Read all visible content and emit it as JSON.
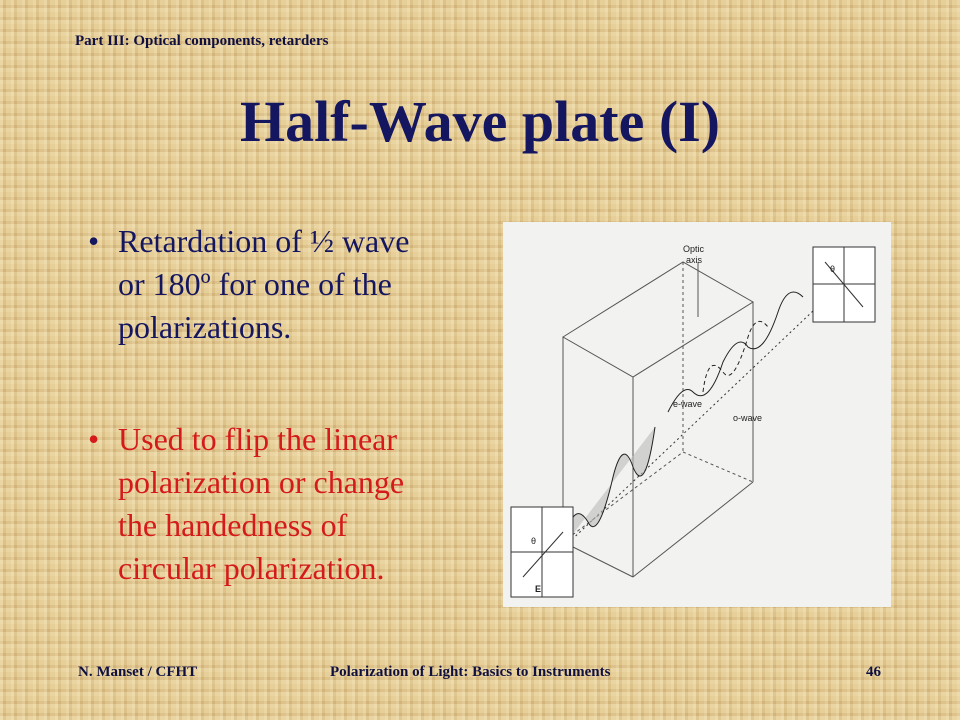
{
  "header": {
    "section": "Part III: Optical components, retarders"
  },
  "title": "Half-Wave plate (I)",
  "bullets": [
    {
      "lines": [
        "Retardation of ½ wave",
        "or 180º for one of the",
        "polarizations."
      ]
    },
    {
      "lines": [
        "Used to flip the linear",
        "polarization or change",
        "the handedness of",
        "circular polarization."
      ]
    }
  ],
  "figure": {
    "labels": {
      "optic_axis": [
        "Optic",
        "axis"
      ],
      "e_wave": "e-wave",
      "o_wave": "o-wave",
      "theta_in": "θ",
      "field": "E",
      "theta_out": "θ"
    }
  },
  "footer": {
    "author": "N. Manset / CFHT",
    "course": "Polarization of Light: Basics to Instruments",
    "page": "46"
  }
}
